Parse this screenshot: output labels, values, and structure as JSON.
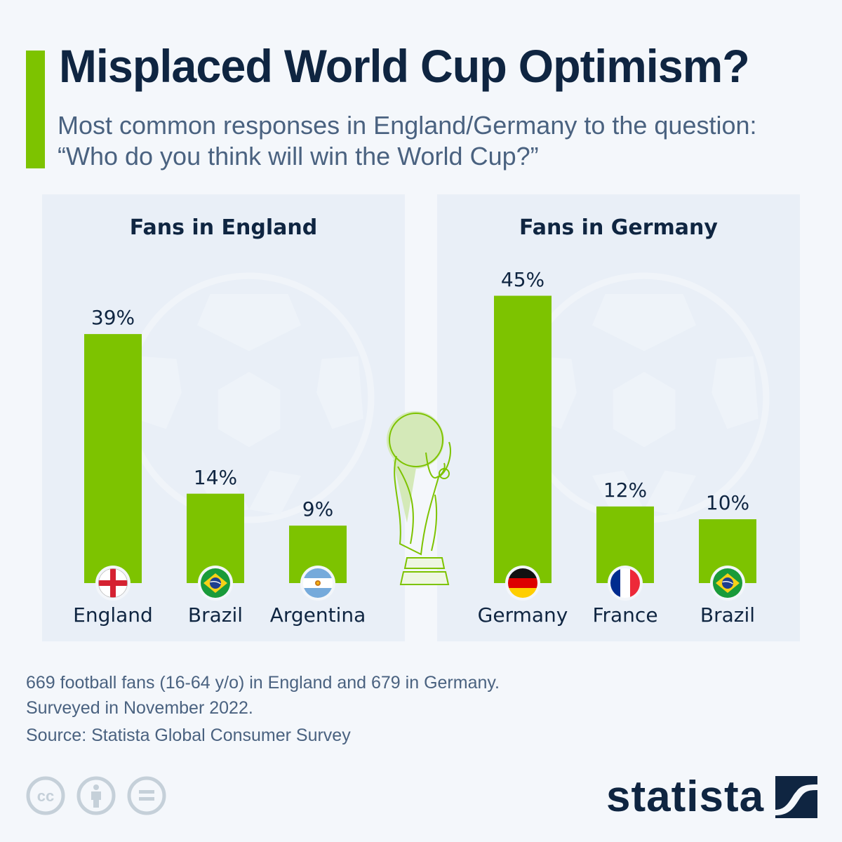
{
  "header": {
    "title": "Misplaced World Cup Optimism?",
    "subtitle": "Most common responses in England/Germany to the question: “Who do you think will win the World Cup?”"
  },
  "colors": {
    "accent": "#7dc300",
    "title_text": "#0f2541",
    "body_text": "#4a6280",
    "panel_bg": "#e9eff7",
    "page_bg": "#f4f7fb"
  },
  "chart_data": [
    {
      "type": "bar",
      "title": "Fans in England",
      "categories": [
        "England",
        "Brazil",
        "Argentina"
      ],
      "values": [
        39,
        14,
        9
      ],
      "value_labels": [
        "39%",
        "14%",
        "9%"
      ],
      "flags": [
        "england-flag",
        "brazil-flag",
        "argentina-flag"
      ],
      "unit": "%",
      "xlabel": "",
      "ylabel": "",
      "ylim": [
        0,
        50
      ],
      "grid": false
    },
    {
      "type": "bar",
      "title": "Fans in Germany",
      "categories": [
        "Germany",
        "France",
        "Brazil"
      ],
      "values": [
        45,
        12,
        10
      ],
      "value_labels": [
        "45%",
        "12%",
        "10%"
      ],
      "flags": [
        "germany-flag",
        "france-flag",
        "brazil-flag"
      ],
      "unit": "%",
      "xlabel": "",
      "ylabel": "",
      "ylim": [
        0,
        50
      ],
      "grid": false
    }
  ],
  "footer": {
    "note_line1": "669 football fans (16-64 y/o) in England and 679 in Germany.",
    "note_line2": "Surveyed in November 2022.",
    "source": "Source: Statista Global Consumer Survey",
    "license_icons": [
      "cc-icon",
      "attribution-icon",
      "no-derivatives-icon"
    ],
    "logo_text": "statista"
  }
}
